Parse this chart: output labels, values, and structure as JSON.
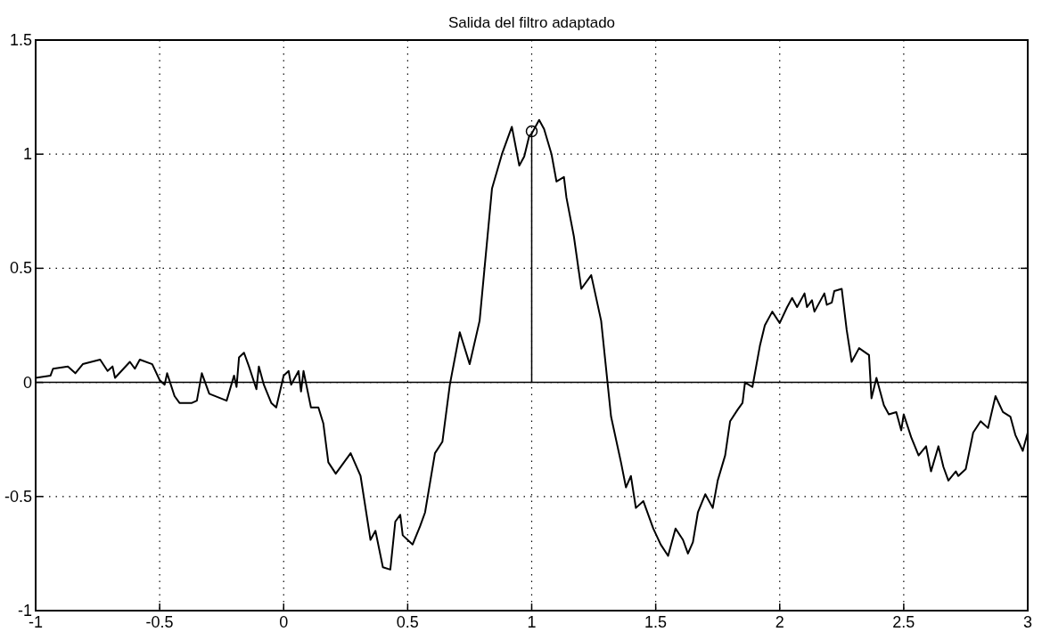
{
  "chart_data": {
    "type": "line",
    "title": "Salida del filtro adaptado",
    "xlim": [
      -1,
      3
    ],
    "ylim": [
      -1,
      1.5
    ],
    "xticks": [
      -1,
      -0.5,
      0,
      0.5,
      1,
      1.5,
      2,
      2.5,
      3
    ],
    "yticks": [
      -1,
      -0.5,
      0,
      0.5,
      1,
      1.5
    ],
    "grid": true,
    "line_style": "solid",
    "ref_lines": [
      {
        "axis": "y",
        "value": 0,
        "color": "#000000"
      }
    ],
    "series": [
      {
        "color": "#000000",
        "x": [
          -1,
          -0.94,
          -0.93,
          -0.87,
          -0.84,
          -0.81,
          -0.74,
          -0.71,
          -0.69,
          -0.68,
          -0.62,
          -0.6,
          -0.58,
          -0.53,
          -0.5,
          -0.48,
          -0.47,
          -0.44,
          -0.42,
          -0.37,
          -0.35,
          -0.33,
          -0.3,
          -0.23,
          -0.2,
          -0.19,
          -0.18,
          -0.16,
          -0.14,
          -0.11,
          -0.1,
          -0.08,
          -0.05,
          -0.03,
          0,
          0.02,
          0.03,
          0.06,
          0.07,
          0.08,
          0.11,
          0.14,
          0.16,
          0.18,
          0.21,
          0.27,
          0.31,
          0.35,
          0.37,
          0.4,
          0.43,
          0.45,
          0.47,
          0.48,
          0.52,
          0.55,
          0.57,
          0.61,
          0.64,
          0.67,
          0.71,
          0.75,
          0.79,
          0.84,
          0.88,
          0.92,
          0.95,
          0.97,
          0.99,
          1,
          1.03,
          1.05,
          1.08,
          1.1,
          1.13,
          1.14,
          1.17,
          1.2,
          1.24,
          1.28,
          1.32,
          1.36,
          1.38,
          1.4,
          1.42,
          1.45,
          1.49,
          1.52,
          1.55,
          1.58,
          1.61,
          1.63,
          1.65,
          1.67,
          1.7,
          1.73,
          1.75,
          1.78,
          1.8,
          1.83,
          1.85,
          1.86,
          1.89,
          1.92,
          1.94,
          1.97,
          2,
          2.03,
          2.05,
          2.07,
          2.1,
          2.11,
          2.13,
          2.14,
          2.18,
          2.19,
          2.21,
          2.22,
          2.25,
          2.27,
          2.29,
          2.32,
          2.36,
          2.37,
          2.39,
          2.42,
          2.44,
          2.47,
          2.49,
          2.5,
          2.53,
          2.56,
          2.59,
          2.61,
          2.64,
          2.66,
          2.68,
          2.71,
          2.72,
          2.75,
          2.78,
          2.81,
          2.84,
          2.87,
          2.9,
          2.93,
          2.95,
          2.98,
          3
        ],
        "values": [
          0.02,
          0.03,
          0.06,
          0.07,
          0.04,
          0.08,
          0.1,
          0.05,
          0.07,
          0.02,
          0.09,
          0.06,
          0.1,
          0.08,
          0.01,
          -0.01,
          0.04,
          -0.06,
          -0.09,
          -0.09,
          -0.08,
          0.04,
          -0.05,
          -0.08,
          0.03,
          -0.02,
          0.11,
          0.13,
          0.07,
          -0.03,
          0.07,
          -0.01,
          -0.09,
          -0.11,
          0.03,
          0.05,
          -0.01,
          0.05,
          -0.04,
          0.05,
          -0.11,
          -0.11,
          -0.18,
          -0.35,
          -0.4,
          -0.31,
          -0.41,
          -0.69,
          -0.65,
          -0.81,
          -0.82,
          -0.61,
          -0.58,
          -0.67,
          -0.71,
          -0.63,
          -0.57,
          -0.31,
          -0.26,
          -0.01,
          0.22,
          0.08,
          0.27,
          0.85,
          1,
          1.12,
          0.95,
          0.99,
          1.08,
          1.09,
          1.15,
          1.11,
          1,
          0.88,
          0.9,
          0.81,
          0.64,
          0.41,
          0.47,
          0.27,
          -0.15,
          -0.35,
          -0.46,
          -0.41,
          -0.55,
          -0.52,
          -0.64,
          -0.71,
          -0.76,
          -0.64,
          -0.69,
          -0.75,
          -0.7,
          -0.57,
          -0.49,
          -0.55,
          -0.43,
          -0.32,
          -0.17,
          -0.12,
          -0.09,
          0,
          -0.02,
          0.16,
          0.25,
          0.31,
          0.26,
          0.33,
          0.37,
          0.33,
          0.39,
          0.33,
          0.36,
          0.31,
          0.39,
          0.34,
          0.35,
          0.4,
          0.41,
          0.23,
          0.09,
          0.15,
          0.12,
          -0.07,
          0.02,
          -0.1,
          -0.14,
          -0.13,
          -0.21,
          -0.14,
          -0.24,
          -0.32,
          -0.28,
          -0.39,
          -0.28,
          -0.37,
          -0.43,
          -0.39,
          -0.41,
          -0.38,
          -0.22,
          -0.17,
          -0.2,
          -0.06,
          -0.13,
          -0.15,
          -0.23,
          -0.3,
          -0.22
        ]
      },
      {
        "type": "lollipop",
        "color": "#000000",
        "marker": "circle",
        "x": [
          1
        ],
        "values": [
          1.1
        ]
      }
    ]
  }
}
